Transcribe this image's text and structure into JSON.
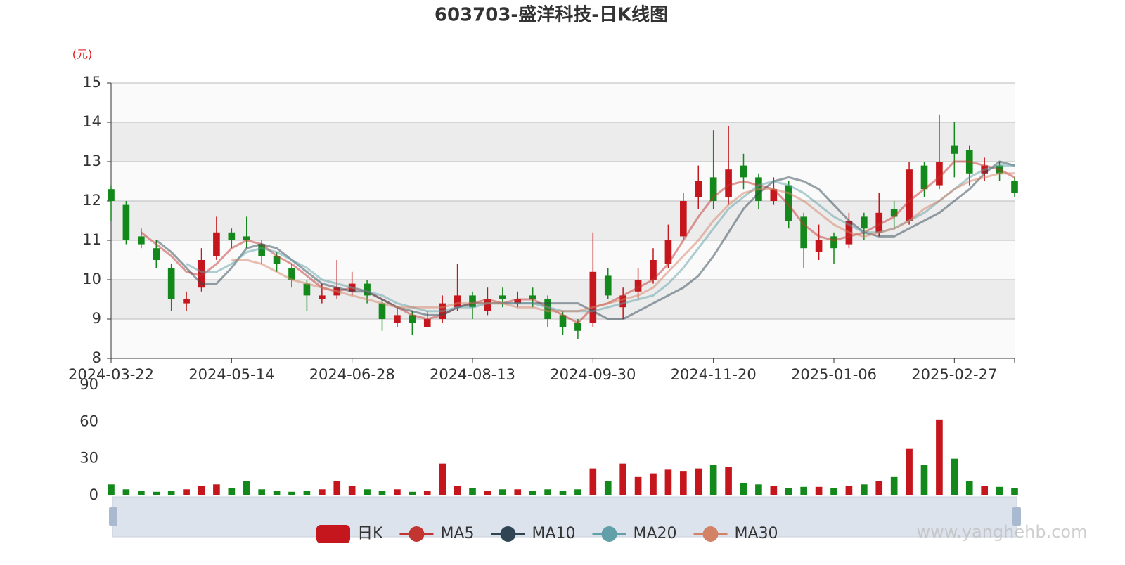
{
  "chart_data": {
    "type": "candlestick",
    "title": "603703-盛洋科技-日K线图",
    "y_unit": "(元)",
    "categories": [
      "2024-03-22",
      null,
      null,
      null,
      null,
      null,
      null,
      null,
      "2024-05-14",
      null,
      null,
      null,
      null,
      null,
      null,
      null,
      "2024-06-28",
      null,
      null,
      null,
      null,
      null,
      null,
      null,
      "2024-08-13",
      null,
      null,
      null,
      null,
      null,
      null,
      null,
      "2024-09-30",
      null,
      null,
      null,
      null,
      null,
      null,
      null,
      "2024-11-20",
      null,
      null,
      null,
      null,
      null,
      null,
      null,
      "2025-01-06",
      null,
      null,
      null,
      null,
      null,
      null,
      null,
      "2025-02-27",
      null,
      null,
      null,
      null
    ],
    "ylim": [
      8,
      15
    ],
    "yticks": [
      8,
      9,
      10,
      11,
      12,
      13,
      14,
      15
    ],
    "candles": {
      "name": "日K",
      "up_color": "#c4161c",
      "down_color": "#14891b",
      "values": [
        [
          12.3,
          12.0,
          11.5,
          12.4
        ],
        [
          11.9,
          11.0,
          10.9,
          12.0
        ],
        [
          11.1,
          10.9,
          10.8,
          11.3
        ],
        [
          10.8,
          10.5,
          10.3,
          11.0
        ],
        [
          10.3,
          9.5,
          9.2,
          10.4
        ],
        [
          9.4,
          9.5,
          9.2,
          9.7
        ],
        [
          9.8,
          10.5,
          9.7,
          10.8
        ],
        [
          10.6,
          11.2,
          10.5,
          11.6
        ],
        [
          11.2,
          11.0,
          10.8,
          11.3
        ],
        [
          11.1,
          11.0,
          10.8,
          11.6
        ],
        [
          10.9,
          10.6,
          10.4,
          11.0
        ],
        [
          10.6,
          10.4,
          10.2,
          10.7
        ],
        [
          10.3,
          10.0,
          9.8,
          10.4
        ],
        [
          9.9,
          9.6,
          9.2,
          10.0
        ],
        [
          9.5,
          9.6,
          9.4,
          9.9
        ],
        [
          9.6,
          9.8,
          9.5,
          10.5
        ],
        [
          9.7,
          9.9,
          9.6,
          10.2
        ],
        [
          9.9,
          9.6,
          9.4,
          10.0
        ],
        [
          9.4,
          9.0,
          8.7,
          9.5
        ],
        [
          8.9,
          9.1,
          8.8,
          9.3
        ],
        [
          9.1,
          8.9,
          8.6,
          9.2
        ],
        [
          8.8,
          9.0,
          8.8,
          9.2
        ],
        [
          9.0,
          9.4,
          8.9,
          9.6
        ],
        [
          9.3,
          9.6,
          9.2,
          10.4
        ],
        [
          9.6,
          9.3,
          9.0,
          9.7
        ],
        [
          9.2,
          9.5,
          9.1,
          9.8
        ],
        [
          9.6,
          9.5,
          9.3,
          9.8
        ],
        [
          9.4,
          9.5,
          9.3,
          9.7
        ],
        [
          9.6,
          9.5,
          9.3,
          9.8
        ],
        [
          9.5,
          9.0,
          8.8,
          9.6
        ],
        [
          9.1,
          8.8,
          8.6,
          9.2
        ],
        [
          8.9,
          8.7,
          8.5,
          9.0
        ],
        [
          8.9,
          10.2,
          8.8,
          11.2
        ],
        [
          10.1,
          9.6,
          9.5,
          10.3
        ],
        [
          9.3,
          9.6,
          9.0,
          9.8
        ],
        [
          9.7,
          10.0,
          9.5,
          10.3
        ],
        [
          10.0,
          10.5,
          9.9,
          10.8
        ],
        [
          10.4,
          11.0,
          10.3,
          11.4
        ],
        [
          11.1,
          12.0,
          11.0,
          12.2
        ],
        [
          12.1,
          12.5,
          11.8,
          12.9
        ],
        [
          12.6,
          12.0,
          11.8,
          13.8
        ],
        [
          12.1,
          12.8,
          11.9,
          13.9
        ],
        [
          12.9,
          12.6,
          12.3,
          13.2
        ],
        [
          12.6,
          12.0,
          11.8,
          12.7
        ],
        [
          12.0,
          12.3,
          11.9,
          12.6
        ],
        [
          12.4,
          11.5,
          11.3,
          12.5
        ],
        [
          11.6,
          10.8,
          10.3,
          11.7
        ],
        [
          10.7,
          11.0,
          10.5,
          11.4
        ],
        [
          11.1,
          10.8,
          10.4,
          11.2
        ],
        [
          10.9,
          11.5,
          10.8,
          11.7
        ],
        [
          11.6,
          11.3,
          11.0,
          11.7
        ],
        [
          11.2,
          11.7,
          11.1,
          12.2
        ],
        [
          11.8,
          11.6,
          11.3,
          12.0
        ],
        [
          11.5,
          12.8,
          11.4,
          13.0
        ],
        [
          12.9,
          12.3,
          12.1,
          13.0
        ],
        [
          12.4,
          13.0,
          12.3,
          14.2
        ],
        [
          13.4,
          13.2,
          12.6,
          14.0
        ],
        [
          13.3,
          12.7,
          12.4,
          13.4
        ],
        [
          12.7,
          12.9,
          12.5,
          13.1
        ],
        [
          12.9,
          12.7,
          12.5,
          13.0
        ],
        [
          12.5,
          12.2,
          12.1,
          12.6
        ]
      ]
    },
    "series": [
      {
        "name": "MA5",
        "color": "#c23531",
        "values": [
          null,
          null,
          11.2,
          10.9,
          10.6,
          10.2,
          10.1,
          10.4,
          10.8,
          11.0,
          10.9,
          10.6,
          10.4,
          10.1,
          9.8,
          9.7,
          9.8,
          9.7,
          9.5,
          9.3,
          9.1,
          9.0,
          9.1,
          9.3,
          9.4,
          9.5,
          9.4,
          9.5,
          9.5,
          9.3,
          9.1,
          8.9,
          9.3,
          9.4,
          9.6,
          9.8,
          10.0,
          10.4,
          11.0,
          11.6,
          12.1,
          12.4,
          12.5,
          12.4,
          12.3,
          11.9,
          11.4,
          11.1,
          11.0,
          11.1,
          11.2,
          11.4,
          11.6,
          12.0,
          12.3,
          12.6,
          13.0,
          13.0,
          12.9,
          12.8,
          12.6
        ]
      },
      {
        "name": "MA10",
        "color": "#2f4554",
        "values": [
          null,
          null,
          null,
          11.0,
          10.7,
          10.3,
          9.9,
          9.9,
          10.3,
          10.8,
          10.9,
          10.8,
          10.5,
          10.2,
          9.9,
          9.8,
          9.7,
          9.7,
          9.5,
          9.3,
          9.2,
          9.1,
          9.1,
          9.3,
          9.4,
          9.4,
          9.4,
          9.4,
          9.4,
          9.4,
          9.4,
          9.4,
          9.2,
          9.0,
          9.0,
          9.2,
          9.4,
          9.6,
          9.8,
          10.1,
          10.6,
          11.2,
          11.8,
          12.2,
          12.5,
          12.6,
          12.5,
          12.3,
          11.9,
          11.5,
          11.2,
          11.1,
          11.1,
          11.3,
          11.5,
          11.7,
          12.0,
          12.3,
          12.7,
          13.0,
          12.9
        ]
      },
      {
        "name": "MA20",
        "color": "#61a0a8",
        "values": [
          null,
          null,
          null,
          null,
          null,
          10.4,
          10.2,
          10.2,
          10.4,
          10.7,
          10.8,
          10.7,
          10.5,
          10.3,
          10.0,
          9.9,
          9.8,
          9.7,
          9.6,
          9.4,
          9.3,
          9.2,
          9.2,
          9.3,
          9.3,
          9.4,
          9.4,
          9.4,
          9.4,
          9.3,
          9.2,
          9.2,
          9.2,
          9.3,
          9.4,
          9.5,
          9.6,
          9.9,
          10.3,
          10.8,
          11.3,
          11.8,
          12.1,
          12.4,
          12.5,
          12.4,
          12.2,
          11.9,
          11.6,
          11.4,
          11.2,
          11.2,
          11.3,
          11.5,
          11.7,
          12.0,
          12.3,
          12.6,
          12.8,
          12.9,
          12.9
        ]
      },
      {
        "name": "MA30",
        "color": "#d48265",
        "values": [
          null,
          null,
          null,
          null,
          null,
          null,
          null,
          null,
          10.5,
          10.5,
          10.4,
          10.2,
          10.0,
          9.9,
          9.8,
          9.7,
          9.6,
          9.5,
          9.4,
          9.3,
          9.3,
          9.3,
          9.3,
          9.4,
          9.4,
          9.4,
          9.4,
          9.3,
          9.3,
          9.2,
          9.2,
          9.2,
          9.3,
          9.4,
          9.5,
          9.6,
          9.8,
          10.2,
          10.6,
          11.0,
          11.5,
          11.9,
          12.2,
          12.3,
          12.3,
          12.2,
          12.0,
          11.7,
          11.4,
          11.2,
          11.1,
          11.2,
          11.3,
          11.5,
          11.8,
          12.0,
          12.3,
          12.5,
          12.6,
          12.7,
          12.7
        ]
      }
    ],
    "volume": {
      "ylim": [
        0,
        90
      ],
      "yticks": [
        0,
        30,
        60,
        90
      ],
      "values": [
        9,
        5,
        4,
        3,
        4,
        5,
        8,
        9,
        6,
        12,
        5,
        4,
        3,
        4,
        5,
        12,
        8,
        5,
        4,
        5,
        3,
        4,
        26,
        8,
        6,
        4,
        5,
        5,
        4,
        5,
        4,
        5,
        22,
        12,
        26,
        15,
        18,
        21,
        20,
        22,
        25,
        23,
        10,
        9,
        8,
        6,
        7,
        7,
        6,
        8,
        9,
        12,
        15,
        38,
        25,
        62,
        30,
        12,
        8,
        7,
        6
      ]
    },
    "watermark": "www.yanghehb.com"
  }
}
